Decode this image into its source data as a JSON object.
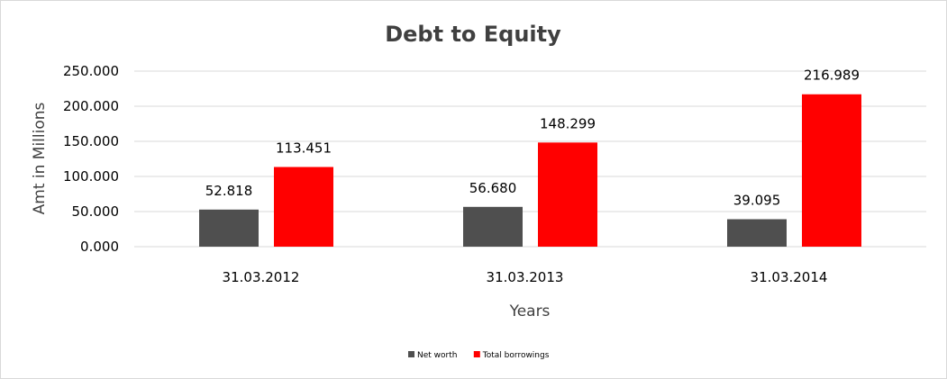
{
  "chart_data": {
    "type": "bar",
    "title": "Debt to Equity",
    "xlabel": "Years",
    "ylabel": "Amt in Millions",
    "categories": [
      "31.03.2012",
      "31.03.2013",
      "31.03.2014"
    ],
    "series": [
      {
        "name": "Net worth",
        "values": [
          52.818,
          56.68,
          39.095
        ],
        "labels": [
          "52.818",
          "56.680",
          "39.095"
        ],
        "color": "#4f4f4f"
      },
      {
        "name": "Total borrowings",
        "values": [
          113.451,
          148.299,
          216.989
        ],
        "labels": [
          "113.451",
          "148.299",
          "216.989"
        ],
        "color": "#ff0000"
      }
    ],
    "ylim": [
      0,
      250
    ],
    "yticks": [
      "0.000",
      "50.000",
      "100.000",
      "150.000",
      "200.000",
      "250.000"
    ],
    "grid": true,
    "legend_position": "bottom"
  }
}
